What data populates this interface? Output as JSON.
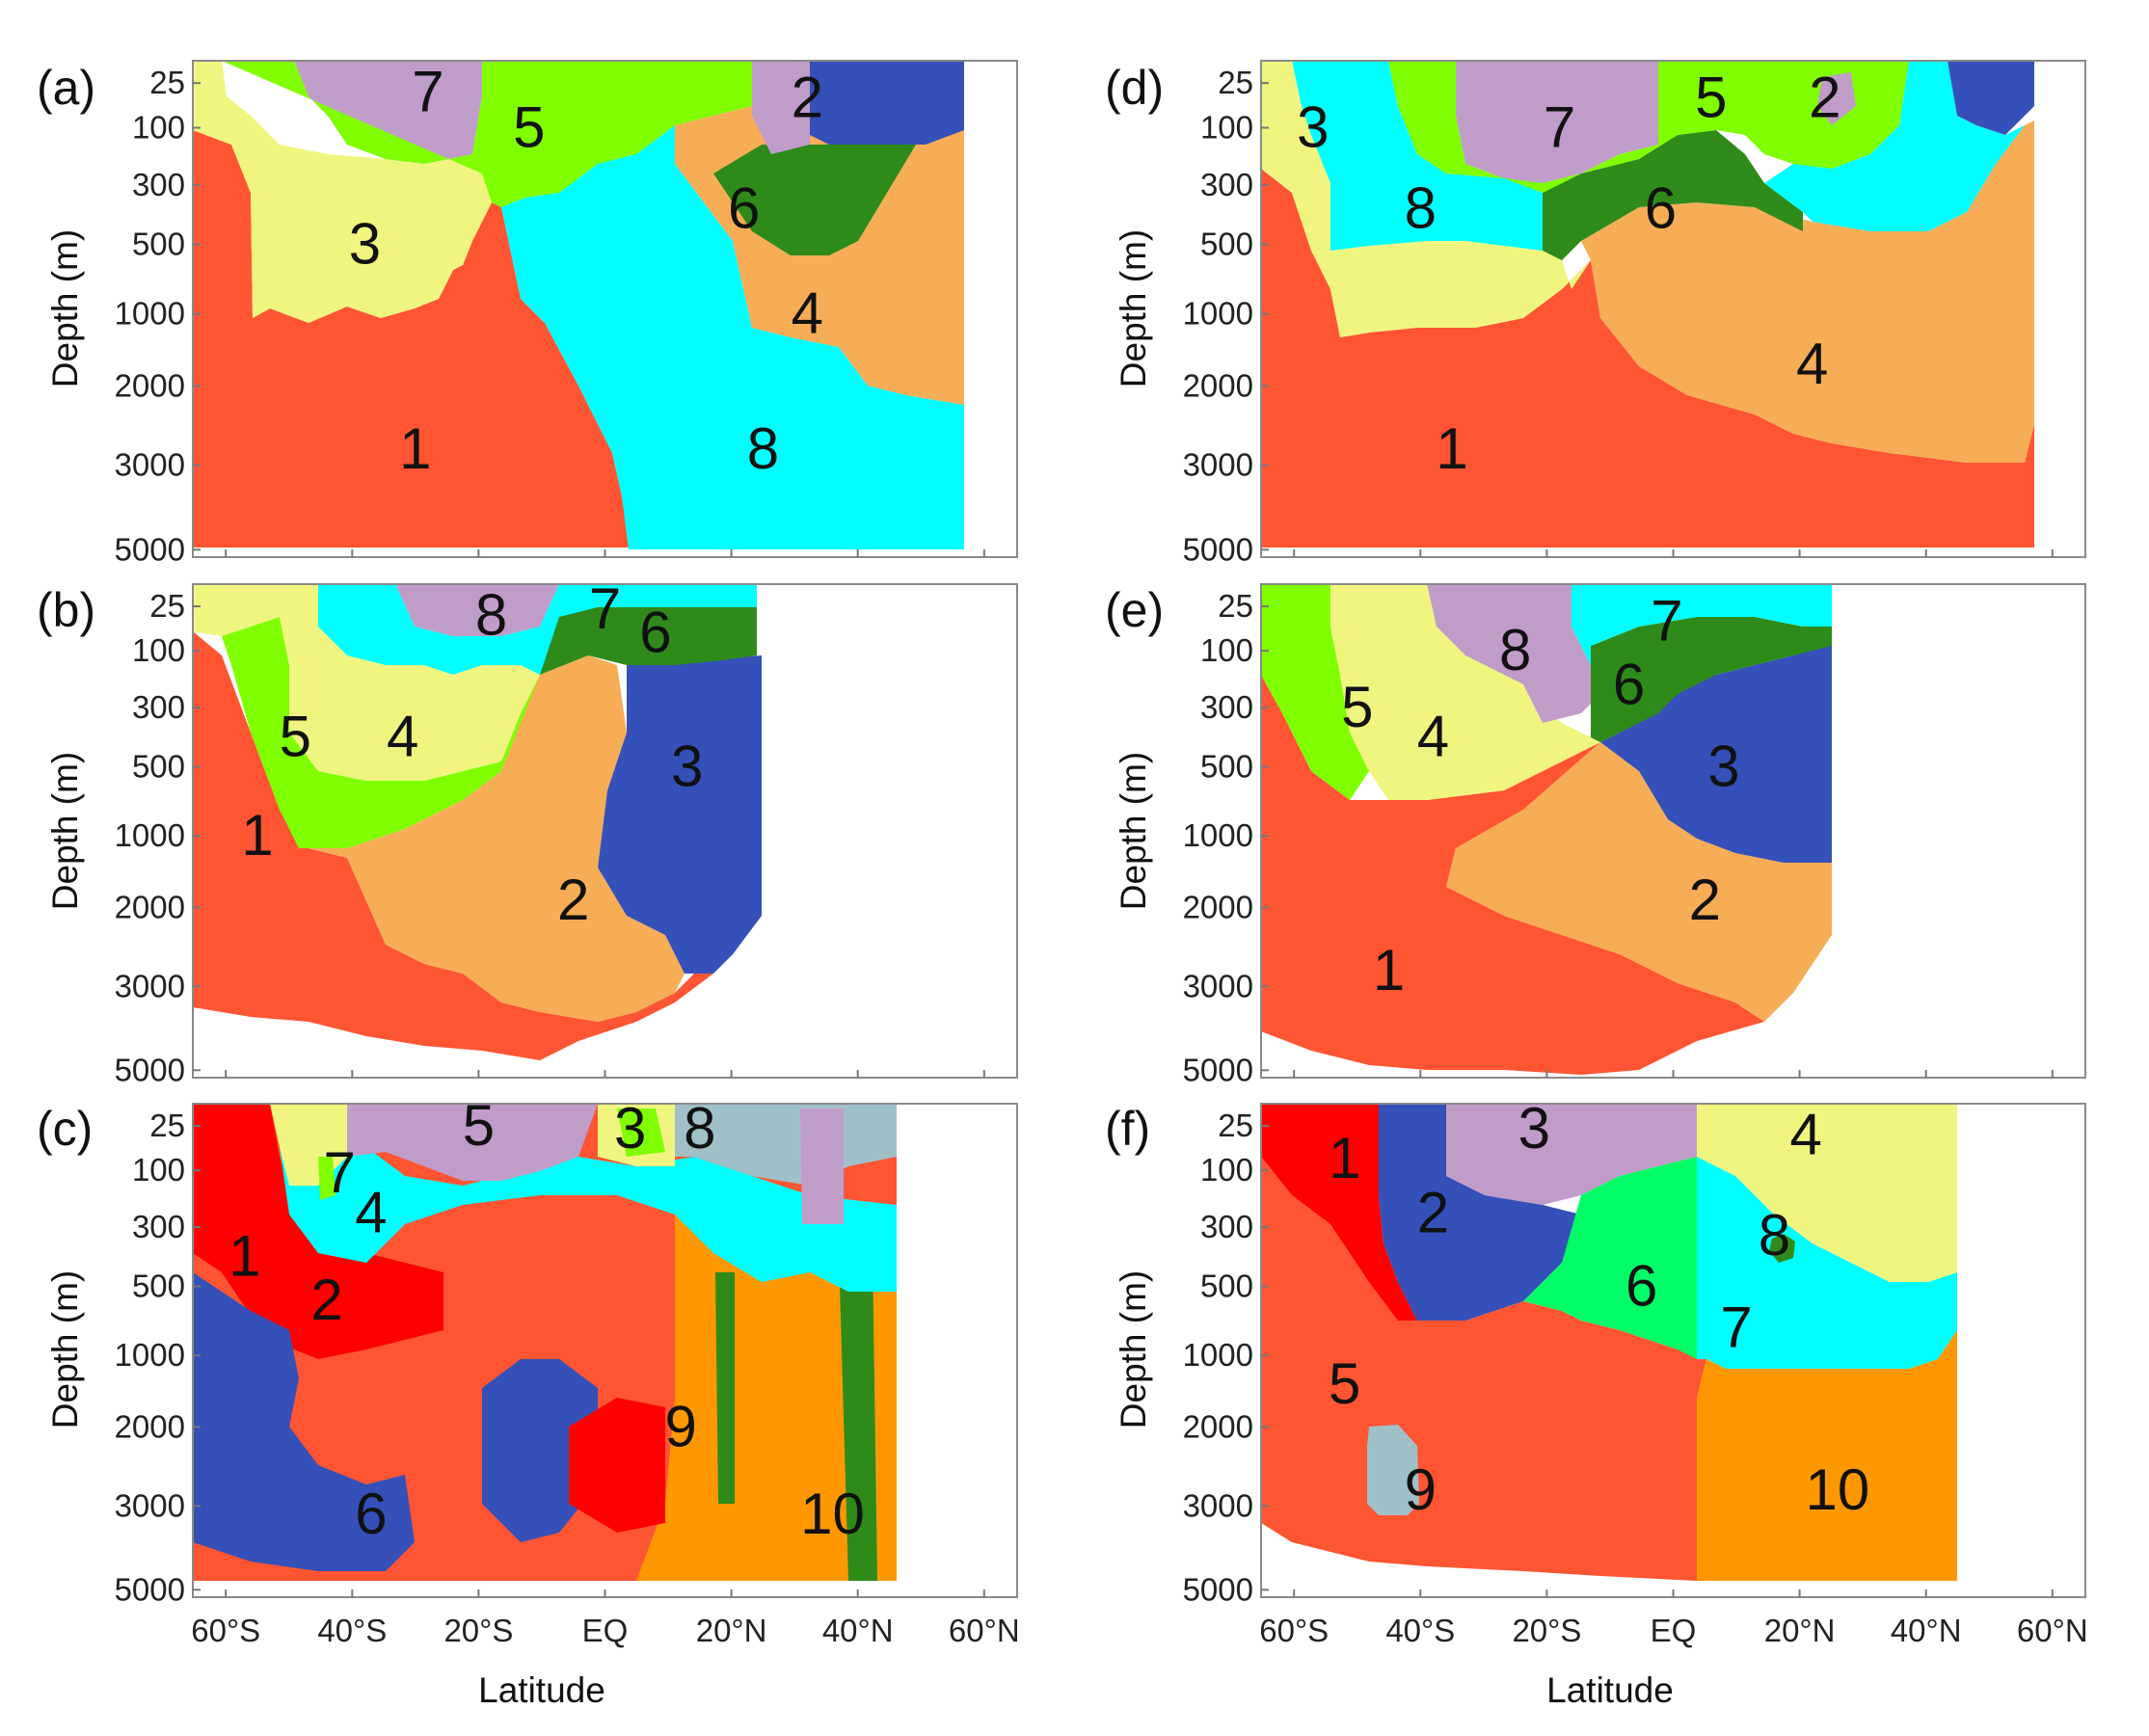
{
  "colors": {
    "c_red": "#ff5533",
    "c_brightred": "#ff0000",
    "c_blue": "#3550b8",
    "c_cyan": "#00ffff",
    "c_lime": "#80ff00",
    "c_yellow": "#f0f580",
    "c_purple": "#c09cc8",
    "c_darkgreen": "#2e8b1a",
    "c_orange": "#f7ad55",
    "c_darkorange": "#ff9800",
    "c_green": "#00ff66",
    "c_grayblue": "#a0c0c8"
  },
  "chart_data": [
    {
      "type": "heatmap",
      "panel": "(a)",
      "ylabel": "Depth (m)",
      "xlabel": "",
      "yticks": [
        "25",
        "100",
        "300",
        "500",
        "1000",
        "2000",
        "3000",
        "5000"
      ],
      "xticks": [],
      "xlim": [
        -60,
        60
      ],
      "ylim": [
        0,
        5000
      ],
      "regions": [
        {
          "label": "1",
          "color": "c_red",
          "lat": -30,
          "depth": 2800
        },
        {
          "label": "2",
          "color": "c_blue",
          "lat": 32,
          "depth": 50
        },
        {
          "label": "3",
          "color": "c_yellow",
          "lat": -38,
          "depth": 500
        },
        {
          "label": "4",
          "color": "c_orange",
          "lat": 32,
          "depth": 1000
        },
        {
          "label": "5",
          "color": "c_lime",
          "lat": -12,
          "depth": 100
        },
        {
          "label": "6",
          "color": "c_darkgreen",
          "lat": 22,
          "depth": 380
        },
        {
          "label": "7",
          "color": "c_purple",
          "lat": -28,
          "depth": 40
        },
        {
          "label": "8",
          "color": "c_cyan",
          "lat": 25,
          "depth": 2800
        }
      ]
    },
    {
      "type": "heatmap",
      "panel": "(b)",
      "ylabel": "Depth (m)",
      "xlabel": "",
      "yticks": [
        "25",
        "100",
        "300",
        "500",
        "1000",
        "2000",
        "3000",
        "5000"
      ],
      "xticks": [],
      "xlim": [
        -60,
        60
      ],
      "ylim": [
        0,
        5000
      ],
      "regions": [
        {
          "label": "1",
          "color": "c_red",
          "lat": -55,
          "depth": 1000
        },
        {
          "label": "2",
          "color": "c_orange",
          "lat": -5,
          "depth": 1900
        },
        {
          "label": "3",
          "color": "c_blue",
          "lat": 13,
          "depth": 500
        },
        {
          "label": "4",
          "color": "c_yellow",
          "lat": -32,
          "depth": 400
        },
        {
          "label": "5",
          "color": "c_lime",
          "lat": -49,
          "depth": 400
        },
        {
          "label": "6",
          "color": "c_darkgreen",
          "lat": 8,
          "depth": 70
        },
        {
          "label": "7",
          "color": "c_cyan",
          "lat": 0,
          "depth": 30
        },
        {
          "label": "8",
          "color": "c_purple",
          "lat": -18,
          "depth": 40
        }
      ]
    },
    {
      "type": "heatmap",
      "panel": "(c)",
      "ylabel": "Depth (m)",
      "xlabel": "Latitude",
      "yticks": [
        "25",
        "100",
        "300",
        "500",
        "1000",
        "2000",
        "3000",
        "5000"
      ],
      "xticks": [
        "60°S",
        "40°S",
        "20°S",
        "EQ",
        "20°N",
        "40°N",
        "60°N"
      ],
      "xlim": [
        -60,
        60
      ],
      "ylim": [
        0,
        5000
      ],
      "regions": [
        {
          "label": "1",
          "color": "c_brightred",
          "lat": -57,
          "depth": 400
        },
        {
          "label": "2",
          "color": "c_brightred",
          "lat": -44,
          "depth": 600
        },
        {
          "label": "3",
          "color": "c_lime",
          "lat": 4,
          "depth": 30
        },
        {
          "label": "4",
          "color": "c_cyan",
          "lat": -37,
          "depth": 250
        },
        {
          "label": "5",
          "color": "c_purple",
          "lat": -20,
          "depth": 25
        },
        {
          "label": "6",
          "color": "c_blue",
          "lat": -37,
          "depth": 3200
        },
        {
          "label": "7",
          "color": "c_lime",
          "lat": -42,
          "depth": 110
        },
        {
          "label": "8",
          "color": "c_grayblue",
          "lat": 15,
          "depth": 30
        },
        {
          "label": "9",
          "color": "c_darkorange",
          "lat": 12,
          "depth": 2000
        },
        {
          "label": "10",
          "color": "c_darkorange",
          "lat": 36,
          "depth": 3200
        }
      ]
    },
    {
      "type": "heatmap",
      "panel": "(d)",
      "ylabel": "Depth (m)",
      "xlabel": "",
      "yticks": [
        "25",
        "100",
        "300",
        "500",
        "1000",
        "2000",
        "3000",
        "5000"
      ],
      "xticks": [],
      "xlim": [
        -60,
        60
      ],
      "ylim": [
        0,
        5000
      ],
      "regions": [
        {
          "label": "1",
          "color": "c_red",
          "lat": -35,
          "depth": 2800
        },
        {
          "label": "2",
          "color": "c_blue",
          "lat": 24,
          "depth": 50
        },
        {
          "label": "3",
          "color": "c_yellow",
          "lat": -57,
          "depth": 100
        },
        {
          "label": "4",
          "color": "c_orange",
          "lat": 22,
          "depth": 1700
        },
        {
          "label": "5",
          "color": "c_lime",
          "lat": 6,
          "depth": 50
        },
        {
          "label": "6",
          "color": "c_darkgreen",
          "lat": -2,
          "depth": 380
        },
        {
          "label": "7",
          "color": "c_purple",
          "lat": -18,
          "depth": 100
        },
        {
          "label": "8",
          "color": "c_cyan",
          "lat": -40,
          "depth": 380
        }
      ]
    },
    {
      "type": "heatmap",
      "panel": "(e)",
      "ylabel": "Depth (m)",
      "xlabel": "",
      "yticks": [
        "25",
        "100",
        "300",
        "500",
        "1000",
        "2000",
        "3000",
        "5000"
      ],
      "xticks": [],
      "xlim": [
        -60,
        60
      ],
      "ylim": [
        0,
        5000
      ],
      "regions": [
        {
          "label": "1",
          "color": "c_red",
          "lat": -45,
          "depth": 2800
        },
        {
          "label": "2",
          "color": "c_orange",
          "lat": 5,
          "depth": 1900
        },
        {
          "label": "3",
          "color": "c_blue",
          "lat": 8,
          "depth": 500
        },
        {
          "label": "4",
          "color": "c_yellow",
          "lat": -38,
          "depth": 400
        },
        {
          "label": "5",
          "color": "c_lime",
          "lat": -50,
          "depth": 300
        },
        {
          "label": "6",
          "color": "c_darkgreen",
          "lat": -7,
          "depth": 220
        },
        {
          "label": "7",
          "color": "c_cyan",
          "lat": -1,
          "depth": 50
        },
        {
          "label": "8",
          "color": "c_purple",
          "lat": -25,
          "depth": 100
        }
      ]
    },
    {
      "type": "heatmap",
      "panel": "(f)",
      "ylabel": "Depth (m)",
      "xlabel": "Latitude",
      "yticks": [
        "25",
        "100",
        "300",
        "500",
        "1000",
        "2000",
        "3000",
        "5000"
      ],
      "xticks": [
        "60°S",
        "40°S",
        "20°S",
        "EQ",
        "20°N",
        "40°N",
        "60°N"
      ],
      "xlim": [
        -60,
        60
      ],
      "ylim": [
        0,
        5000
      ],
      "regions": [
        {
          "label": "1",
          "color": "c_brightred",
          "lat": -52,
          "depth": 80
        },
        {
          "label": "2",
          "color": "c_blue",
          "lat": -38,
          "depth": 250
        },
        {
          "label": "3",
          "color": "c_purple",
          "lat": -22,
          "depth": 30
        },
        {
          "label": "4",
          "color": "c_yellow",
          "lat": 21,
          "depth": 40
        },
        {
          "label": "5",
          "color": "c_red",
          "lat": -52,
          "depth": 1400
        },
        {
          "label": "6",
          "color": "c_green",
          "lat": -5,
          "depth": 500
        },
        {
          "label": "7",
          "color": "c_cyan",
          "lat": 10,
          "depth": 800
        },
        {
          "label": "8",
          "color": "c_darkgreen",
          "lat": 16,
          "depth": 330
        },
        {
          "label": "9",
          "color": "c_grayblue",
          "lat": -40,
          "depth": 2800
        },
        {
          "label": "10",
          "color": "c_darkorange",
          "lat": 26,
          "depth": 2800
        }
      ]
    }
  ]
}
